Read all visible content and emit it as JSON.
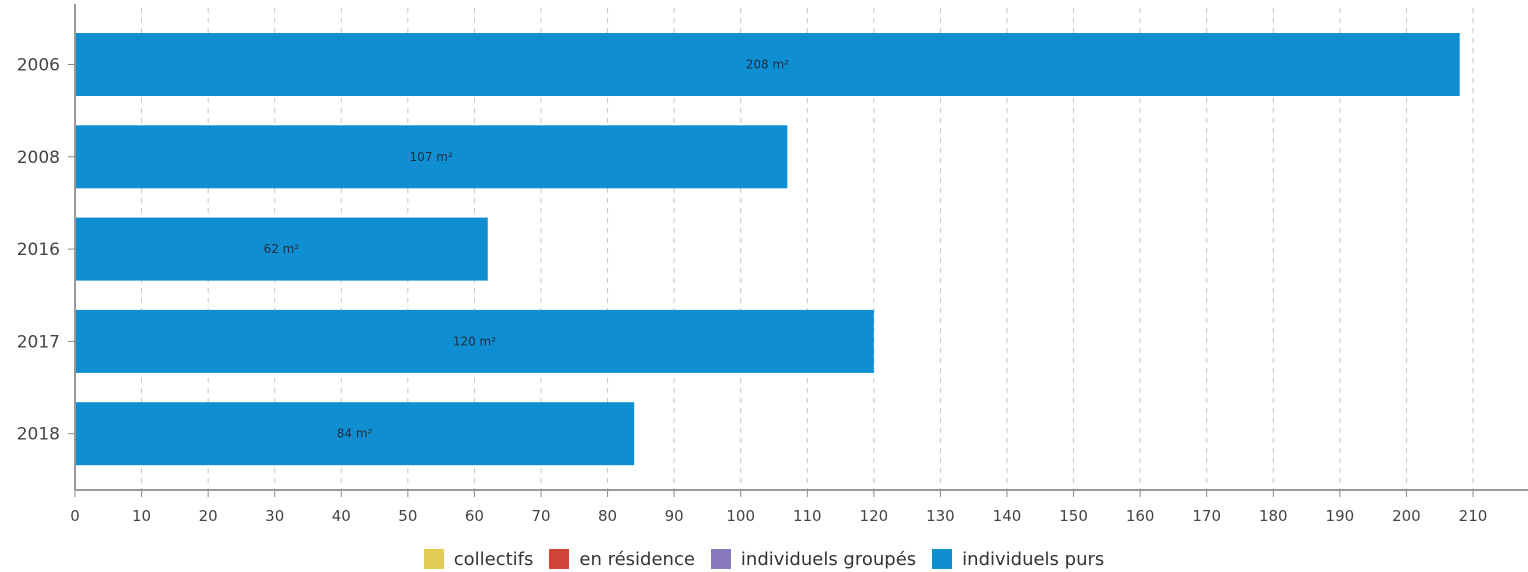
{
  "chart_data": {
    "type": "bar",
    "orientation": "horizontal",
    "categories": [
      "2006",
      "2008",
      "2016",
      "2017",
      "2018"
    ],
    "series": [
      {
        "name": "collectifs",
        "color": "#e2cc55",
        "values": [
          0,
          0,
          0,
          0,
          0
        ]
      },
      {
        "name": "en résidence",
        "color": "#d24437",
        "values": [
          0,
          0,
          0,
          0,
          0
        ]
      },
      {
        "name": "individuels groupés",
        "color": "#8a78bd",
        "values": [
          0,
          0,
          0,
          0,
          0
        ]
      },
      {
        "name": "individuels purs",
        "color": "#0f8ed2",
        "values": [
          208,
          107,
          62,
          120,
          84
        ]
      }
    ],
    "data_labels": [
      "208 m²",
      "107 m²",
      "62 m²",
      "120 m²",
      "84 m²"
    ],
    "xlim": [
      0,
      210
    ],
    "xticks": [
      "0",
      "10",
      "20",
      "30",
      "40",
      "50",
      "60",
      "70",
      "80",
      "90",
      "100",
      "110",
      "120",
      "130",
      "140",
      "150",
      "160",
      "170",
      "180",
      "190",
      "200",
      "210"
    ],
    "title": "",
    "xlabel": "",
    "ylabel": "",
    "grid": "vertical dashed",
    "legend_position": "bottom"
  }
}
